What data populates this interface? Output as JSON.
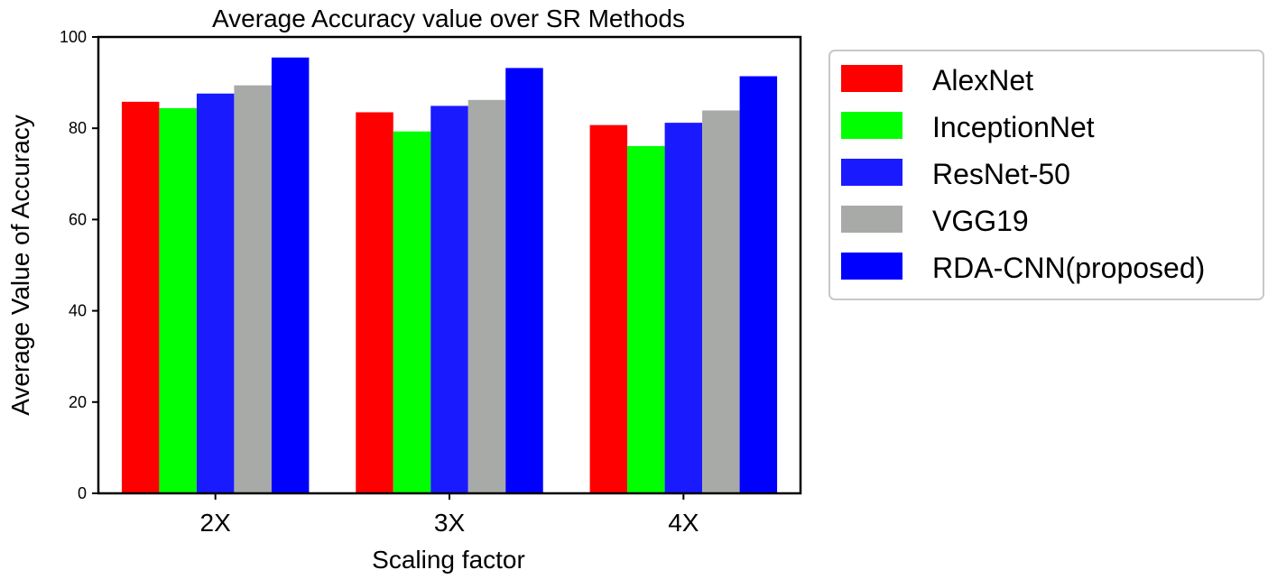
{
  "chart_data": {
    "type": "bar",
    "title": "Average Accuracy value over SR Methods",
    "xlabel": "Scaling factor",
    "ylabel": "Average Value of Accuracy",
    "categories": [
      "2X",
      "3X",
      "4X"
    ],
    "ylim": [
      0,
      100
    ],
    "yticks": [
      0,
      20,
      40,
      60,
      80,
      100
    ],
    "grid": false,
    "legend_position": "right, outside plot",
    "series": [
      {
        "name": "AlexNet",
        "color": "#ff0000",
        "values": [
          85.8,
          83.5,
          80.7
        ]
      },
      {
        "name": "InceptionNet",
        "color": "#00ff00",
        "values": [
          84.4,
          79.3,
          76.1
        ]
      },
      {
        "name": "ResNet-50",
        "color": "#1a1aff",
        "values": [
          87.6,
          84.9,
          81.2
        ]
      },
      {
        "name": "VGG19",
        "color": "#a8aaa8",
        "values": [
          89.4,
          86.2,
          83.9
        ]
      },
      {
        "name": "RDA-CNN(proposed)",
        "color": "#0000ff",
        "values": [
          95.5,
          93.2,
          91.4
        ]
      }
    ]
  }
}
